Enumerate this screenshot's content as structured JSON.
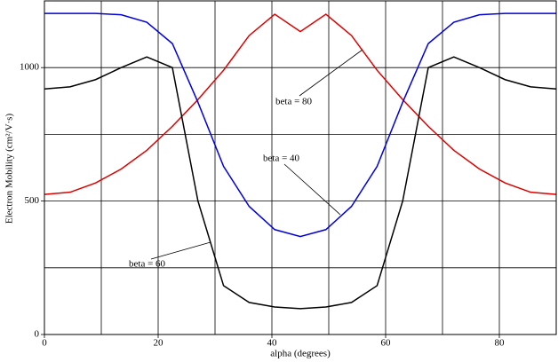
{
  "chart_data": {
    "type": "line",
    "x_label": "alpha (degrees)",
    "y_label": "Electron Mobility (cm²/V·s)",
    "x": [
      0,
      4.5,
      9,
      13.5,
      18,
      22.5,
      27,
      31.5,
      36,
      40.5,
      45,
      49.5,
      54,
      58.5,
      63,
      67.5,
      72,
      76.5,
      81,
      85.5,
      90
    ],
    "series": [
      {
        "name": "beta = 80",
        "color": "#dd0000",
        "values": [
          525,
          533,
          568,
          620,
          690,
          780,
          880,
          990,
          1120,
          1200,
          1135,
          1200,
          1120,
          990,
          880,
          780,
          690,
          620,
          568,
          533,
          525
        ]
      },
      {
        "name": "beta = 40",
        "color": "#0000dd",
        "values": [
          1203,
          1203,
          1203,
          1198,
          1170,
          1090,
          870,
          630,
          480,
          393,
          367,
          393,
          480,
          630,
          870,
          1090,
          1170,
          1198,
          1203,
          1203,
          1203
        ]
      },
      {
        "name": "beta = 60",
        "color": "#000000",
        "values": [
          920,
          928,
          955,
          1000,
          1040,
          1000,
          500,
          183,
          120,
          103,
          97,
          103,
          120,
          183,
          500,
          1000,
          1040,
          1000,
          955,
          928,
          920
        ]
      }
    ],
    "xlim": [
      0,
      90
    ],
    "ylim": [
      0,
      1250
    ],
    "xticks": [
      0,
      20,
      40,
      60,
      80
    ],
    "yticks": [
      0,
      500,
      1000
    ],
    "xgrid": [
      0,
      10,
      20,
      30,
      40,
      50,
      60,
      70,
      80,
      90
    ],
    "ygrid": [
      0,
      250,
      500,
      750,
      1000,
      1250
    ],
    "grid": true
  }
}
